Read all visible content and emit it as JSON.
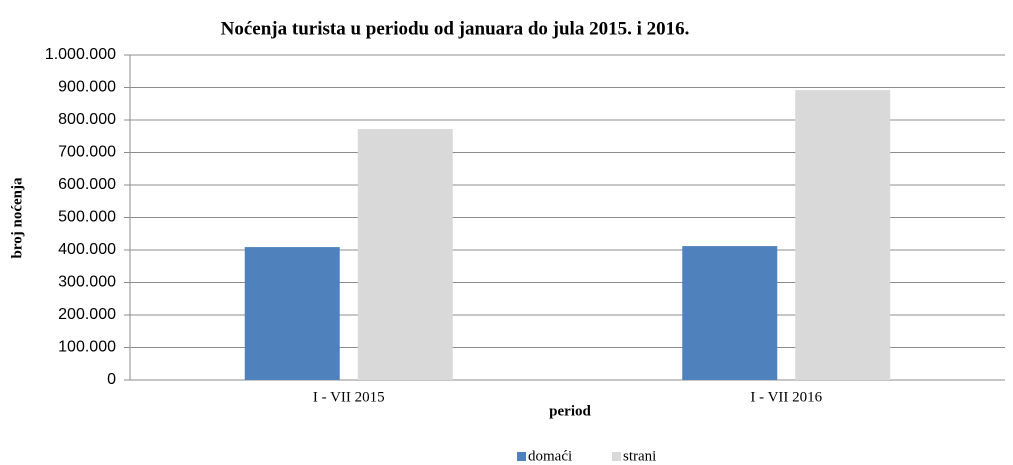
{
  "chart_data": {
    "type": "bar",
    "title": "Noćenja turista u periodu od januara do jula 2015. i 2016.",
    "x_label": "period",
    "y_label": "broj noćenja",
    "categories": [
      "I - VII 2015",
      "I - VII 2016"
    ],
    "series": [
      {
        "name": "domaći",
        "color": "#4f81bd",
        "values": [
          409000,
          412000
        ]
      },
      {
        "name": "strani",
        "color": "#d9d9d9",
        "values": [
          772000,
          892000
        ]
      }
    ],
    "ylim": [
      0,
      1000000
    ],
    "yticks": [
      0,
      {
        "value": 100000,
        "label": "100.000"
      },
      {
        "value": 200000,
        "label": "200.000"
      },
      {
        "value": 300000,
        "label": "300.000"
      },
      {
        "value": 400000,
        "label": "400.000"
      },
      {
        "value": 500000,
        "label": "500.000"
      },
      {
        "value": 600000,
        "label": "600.000"
      },
      {
        "value": 700000,
        "label": "700.000"
      },
      {
        "value": 800000,
        "label": "800.000"
      },
      {
        "value": 900000,
        "label": "900.000"
      },
      {
        "value": 1000000,
        "label": "1.000.000"
      }
    ],
    "grid": true,
    "legend": "bottom"
  }
}
